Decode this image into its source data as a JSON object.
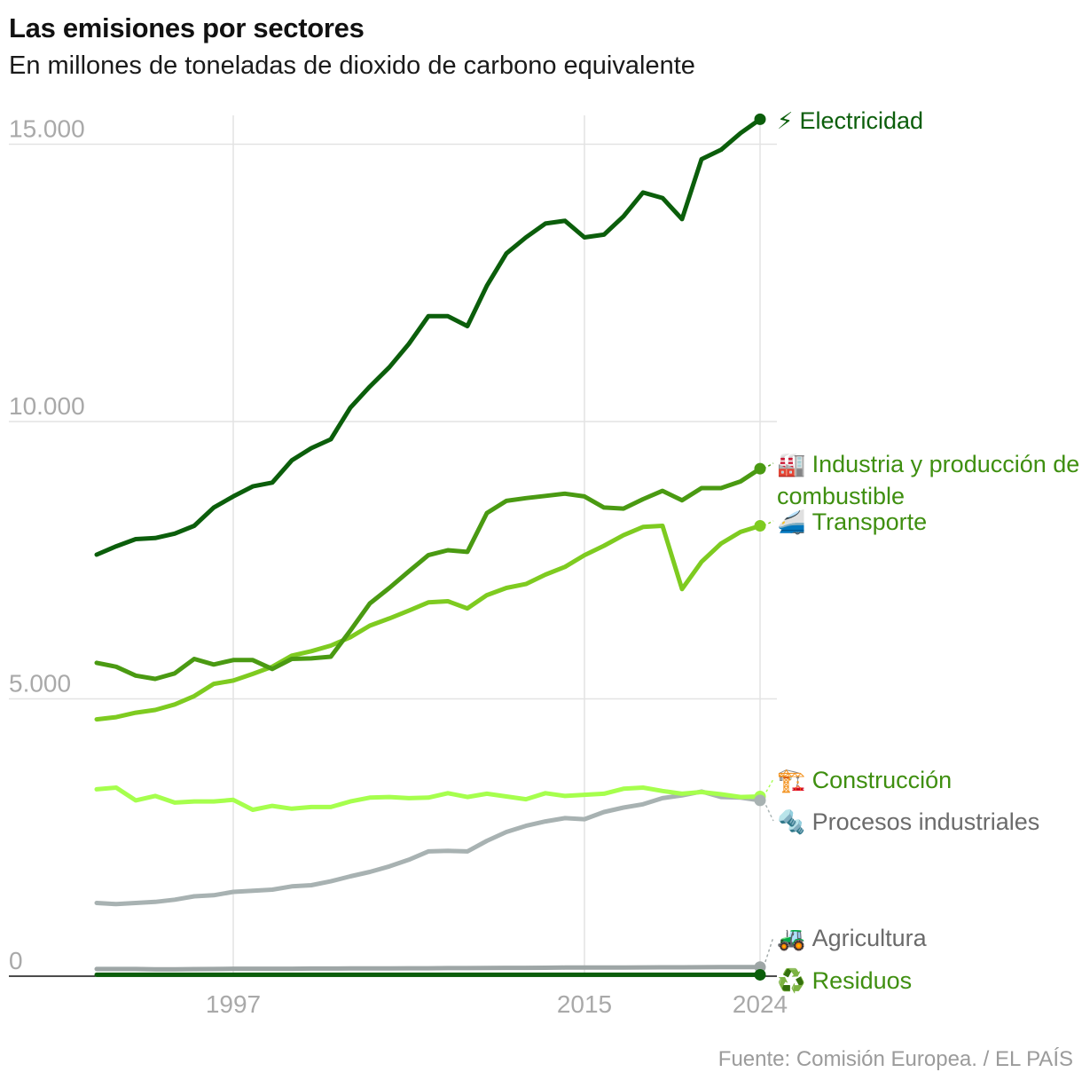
{
  "title": "Las emisiones por sectores",
  "subtitle": "En millones de toneladas de dioxido de carbono equivalente",
  "source": "Fuente: Comisión Europea. / EL PAÍS",
  "chart_data": {
    "type": "line",
    "title": "Las emisiones por sectores",
    "subtitle": "En millones de toneladas de dioxido de carbono equivalente",
    "x": [
      1990,
      1991,
      1992,
      1993,
      1994,
      1995,
      1996,
      1997,
      1998,
      1999,
      2000,
      2001,
      2002,
      2003,
      2004,
      2005,
      2006,
      2007,
      2008,
      2009,
      2010,
      2011,
      2012,
      2013,
      2014,
      2015,
      2016,
      2017,
      2018,
      2019,
      2020,
      2021,
      2022,
      2023,
      2024
    ],
    "xticks": [
      "1997",
      "2015",
      "2024"
    ],
    "xtick_values": [
      1997,
      2015,
      2024
    ],
    "ylim": [
      0,
      15500
    ],
    "yticks": [
      0,
      5000,
      10000,
      15000
    ],
    "ytick_labels": [
      "0",
      "5.000",
      "10.000",
      "15.000"
    ],
    "grid": true,
    "series": [
      {
        "name": "Electricidad",
        "icon": "⚡",
        "color": "#0b5e0b",
        "label_color": "#0b5e0b",
        "values": [
          7600,
          7750,
          7880,
          7900,
          7980,
          8120,
          8450,
          8650,
          8830,
          8900,
          9300,
          9520,
          9680,
          10250,
          10630,
          10980,
          11400,
          11900,
          11900,
          11720,
          12450,
          13030,
          13320,
          13570,
          13620,
          13320,
          13370,
          13700,
          14130,
          14030,
          13650,
          14730,
          14900,
          15200,
          15450
        ]
      },
      {
        "name": "Industria y producción de combustible",
        "icon": "🏭",
        "color": "#4a9a12",
        "label_color": "#3f8f10",
        "values": [
          5650,
          5580,
          5420,
          5360,
          5460,
          5720,
          5620,
          5700,
          5700,
          5540,
          5720,
          5730,
          5760,
          6230,
          6720,
          7000,
          7300,
          7590,
          7680,
          7650,
          8350,
          8570,
          8620,
          8660,
          8700,
          8650,
          8450,
          8430,
          8600,
          8750,
          8580,
          8800,
          8800,
          8920,
          9150
        ]
      },
      {
        "name": "Transporte",
        "icon": "🚄",
        "color": "#7ecb20",
        "label_color": "#3f8f10",
        "values": [
          4630,
          4670,
          4750,
          4800,
          4900,
          5050,
          5270,
          5330,
          5450,
          5580,
          5780,
          5860,
          5960,
          6110,
          6320,
          6450,
          6590,
          6740,
          6760,
          6630,
          6870,
          7000,
          7070,
          7240,
          7380,
          7590,
          7760,
          7950,
          8100,
          8120,
          6980,
          7470,
          7800,
          8010,
          8120
        ]
      },
      {
        "name": "Construcción",
        "icon": "🏗️",
        "color": "#a6ff4d",
        "label_color": "#3f8f10",
        "values": [
          3370,
          3400,
          3170,
          3250,
          3130,
          3150,
          3150,
          3180,
          3000,
          3070,
          3020,
          3050,
          3050,
          3150,
          3220,
          3230,
          3210,
          3220,
          3300,
          3230,
          3290,
          3240,
          3190,
          3300,
          3250,
          3270,
          3290,
          3380,
          3400,
          3340,
          3290,
          3320,
          3280,
          3230,
          3240
        ]
      },
      {
        "name": "Procesos industriales",
        "icon": "🔩",
        "color": "#a8b2b2",
        "label_color": "#6b6b6b",
        "values": [
          1320,
          1300,
          1320,
          1340,
          1380,
          1440,
          1460,
          1520,
          1540,
          1560,
          1620,
          1640,
          1710,
          1800,
          1880,
          1980,
          2100,
          2250,
          2260,
          2250,
          2440,
          2600,
          2710,
          2790,
          2850,
          2830,
          2960,
          3040,
          3100,
          3210,
          3260,
          3330,
          3230,
          3220,
          3170
        ]
      },
      {
        "name": "Agricultura",
        "icon": "🚜",
        "color": "#9ea6a6",
        "label_color": "#6b6b6b",
        "values": [
          130,
          130,
          130,
          125,
          125,
          128,
          130,
          135,
          135,
          135,
          135,
          138,
          138,
          140,
          140,
          140,
          142,
          142,
          145,
          145,
          148,
          150,
          150,
          152,
          155,
          155,
          155,
          157,
          158,
          160,
          160,
          162,
          163,
          163,
          165
        ]
      },
      {
        "name": "Residuos",
        "icon": "♻️",
        "color": "#0b5e0b",
        "label_color": "#3f8f10",
        "values": [
          25,
          25,
          25,
          25,
          25,
          25,
          25,
          25,
          25,
          25,
          25,
          25,
          25,
          25,
          25,
          25,
          25,
          25,
          25,
          25,
          25,
          25,
          25,
          25,
          25,
          25,
          25,
          25,
          25,
          25,
          25,
          25,
          25,
          25,
          25
        ]
      }
    ]
  }
}
